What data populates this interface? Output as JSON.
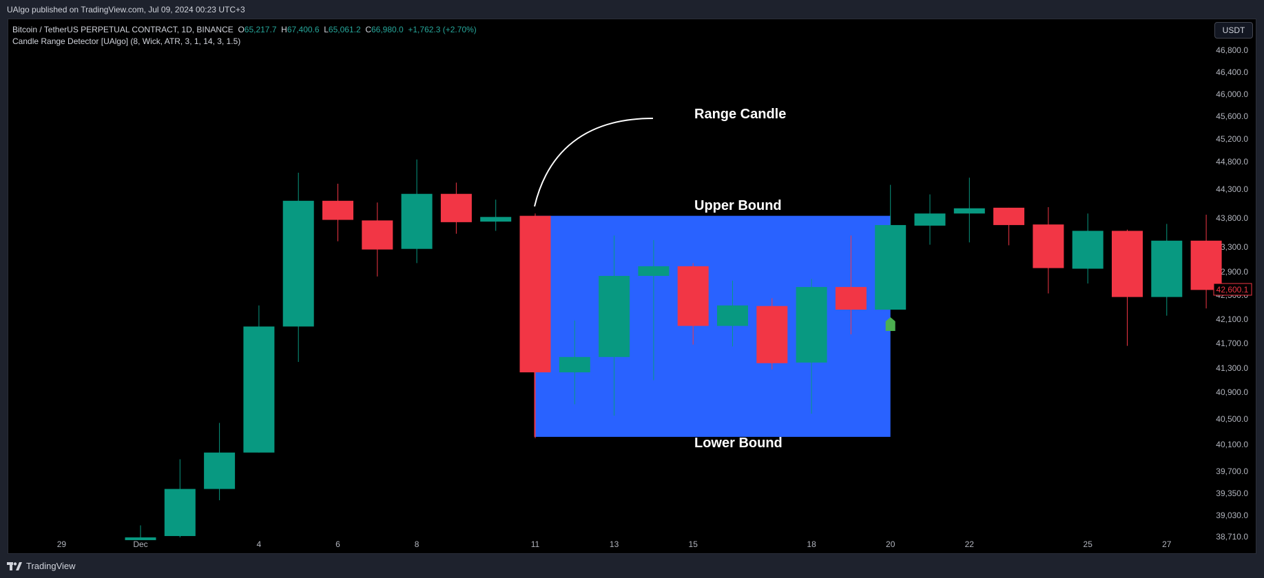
{
  "header": {
    "published": "UAlgo published on TradingView.com, Jul 09, 2024 00:23 UTC+3"
  },
  "legend": {
    "symbol": "Bitcoin / TetherUS PERPETUAL CONTRACT, 1D, BINANCE",
    "o_label": "O",
    "o_value": "65,217.7",
    "h_label": "H",
    "h_value": "67,400.6",
    "l_label": "L",
    "l_value": "65,061.2",
    "c_label": "C",
    "c_value": "66,980.0",
    "change": "+1,762.3 (+2.70%)",
    "indicator": "Candle Range Detector [UAlgo] (8, Wick, ATR, 3, 1, 14, 3, 1.5)"
  },
  "currency_button": "USDT",
  "footer": {
    "brand": "TradingView"
  },
  "colors": {
    "up": "#089981",
    "down": "#f23645",
    "range_box": "#2962ff",
    "marker": "#4caf50",
    "background": "#000000",
    "price_tag": "#f23645"
  },
  "chart_data": {
    "type": "candlestick",
    "title": "",
    "xlabel": "",
    "ylabel": "",
    "y_ticks": [
      "46,800.0",
      "46,400.0",
      "46,000.0",
      "45,600.0",
      "45,200.0",
      "44,800.0",
      "44,300.0",
      "43,800.0",
      "43,300.0",
      "42,900.0",
      "42,500.0",
      "42,100.0",
      "41,700.0",
      "41,300.0",
      "40,900.0",
      "40,500.0",
      "40,100.0",
      "39,700.0",
      "39,350.0",
      "39,030.0",
      "38,710.0"
    ],
    "x_ticks": [
      {
        "label": "29",
        "i": -2
      },
      {
        "label": "Dec",
        "i": 0
      },
      {
        "label": "4",
        "i": 3
      },
      {
        "label": "6",
        "i": 5
      },
      {
        "label": "8",
        "i": 7
      },
      {
        "label": "11",
        "i": 10
      },
      {
        "label": "13",
        "i": 12
      },
      {
        "label": "15",
        "i": 14
      },
      {
        "label": "18",
        "i": 17
      },
      {
        "label": "20",
        "i": 19
      },
      {
        "label": "22",
        "i": 21
      },
      {
        "label": "25",
        "i": 24
      },
      {
        "label": "27",
        "i": 26
      }
    ],
    "last_price": "42,600.1",
    "annotations": {
      "range_candle": "Range Candle",
      "upper_bound": "Upper Bound",
      "lower_bound": "Lower Bound"
    },
    "range_box": {
      "i_start": 10,
      "i_end": 19,
      "upper": 43840,
      "lower": 40220
    },
    "breakout_marker": {
      "i": 19,
      "price": 42020
    },
    "candles": [
      {
        "i": 0,
        "o": 38700,
        "h": 38880,
        "l": 38700,
        "c": 38700
      },
      {
        "i": 1,
        "o": 38720,
        "h": 39880,
        "l": 38700,
        "c": 39420
      },
      {
        "i": 2,
        "o": 39420,
        "h": 40440,
        "l": 39250,
        "c": 39980
      },
      {
        "i": 3,
        "o": 39980,
        "h": 42330,
        "l": 39980,
        "c": 41980
      },
      {
        "i": 4,
        "o": 41980,
        "h": 44600,
        "l": 41400,
        "c": 44100
      },
      {
        "i": 5,
        "o": 44100,
        "h": 44400,
        "l": 43400,
        "c": 43770
      },
      {
        "i": 6,
        "o": 43760,
        "h": 44070,
        "l": 42820,
        "c": 43260
      },
      {
        "i": 7,
        "o": 43270,
        "h": 44840,
        "l": 43040,
        "c": 44220
      },
      {
        "i": 8,
        "o": 44220,
        "h": 44420,
        "l": 43530,
        "c": 43730
      },
      {
        "i": 9,
        "o": 43740,
        "h": 44120,
        "l": 43580,
        "c": 43820
      },
      {
        "i": 10,
        "o": 43840,
        "h": 43880,
        "l": 40200,
        "c": 41230
      },
      {
        "i": 11,
        "o": 41230,
        "h": 42080,
        "l": 40720,
        "c": 41480
      },
      {
        "i": 12,
        "o": 41480,
        "h": 43500,
        "l": 40550,
        "c": 42830
      },
      {
        "i": 13,
        "o": 42830,
        "h": 43420,
        "l": 41100,
        "c": 42990
      },
      {
        "i": 14,
        "o": 42990,
        "h": 43040,
        "l": 41680,
        "c": 41990
      },
      {
        "i": 15,
        "o": 41990,
        "h": 42750,
        "l": 41650,
        "c": 42330
      },
      {
        "i": 16,
        "o": 42320,
        "h": 42450,
        "l": 41280,
        "c": 41380
      },
      {
        "i": 17,
        "o": 41390,
        "h": 42780,
        "l": 40580,
        "c": 42640
      },
      {
        "i": 18,
        "o": 42640,
        "h": 43500,
        "l": 41850,
        "c": 42260
      },
      {
        "i": 19,
        "o": 42260,
        "h": 44380,
        "l": 42260,
        "c": 43680
      },
      {
        "i": 20,
        "o": 43670,
        "h": 44210,
        "l": 43340,
        "c": 43880
      },
      {
        "i": 21,
        "o": 43880,
        "h": 44510,
        "l": 43380,
        "c": 43970
      },
      {
        "i": 22,
        "o": 43980,
        "h": 43980,
        "l": 43330,
        "c": 43680
      },
      {
        "i": 23,
        "o": 43690,
        "h": 43990,
        "l": 42530,
        "c": 42960
      },
      {
        "i": 24,
        "o": 42950,
        "h": 43880,
        "l": 42700,
        "c": 43580
      },
      {
        "i": 25,
        "o": 43580,
        "h": 43600,
        "l": 41660,
        "c": 42470
      },
      {
        "i": 26,
        "o": 42470,
        "h": 43700,
        "l": 42160,
        "c": 43410
      },
      {
        "i": 27,
        "o": 43410,
        "h": 43860,
        "l": 42280,
        "c": 42590
      }
    ]
  }
}
